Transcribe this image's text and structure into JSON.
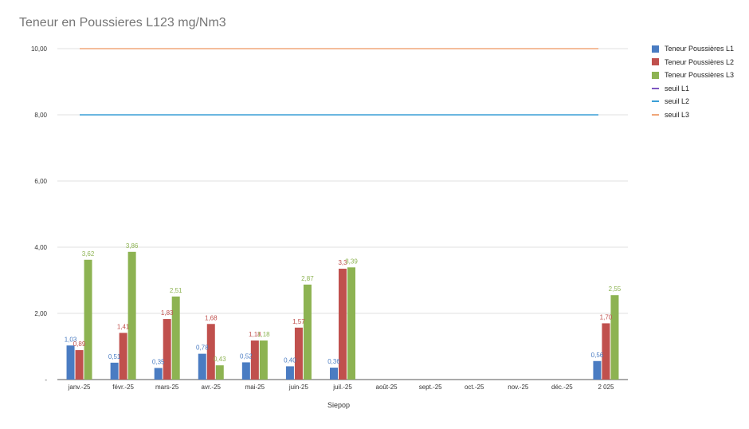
{
  "chart_data": {
    "type": "bar",
    "title": "Teneur en Poussieres L123 mg/Nm3",
    "xlabel": "Siepop",
    "ylabel": "",
    "ylim": [
      0,
      10
    ],
    "y_ticks": [
      "-",
      "2,00",
      "4,00",
      "6,00",
      "8,00",
      "10,00"
    ],
    "categories": [
      "janv.-25",
      "févr.-25",
      "mars-25",
      "avr.-25",
      "mai-25",
      "juin-25",
      "juil.-25",
      "août-25",
      "sept.-25",
      "oct.-25",
      "nov.-25",
      "déc.-25",
      "2 025"
    ],
    "series": [
      {
        "name": "Teneur Poussières L1",
        "color": "#4a7cc2",
        "values": [
          1.03,
          0.51,
          0.35,
          0.78,
          0.52,
          0.4,
          0.36,
          null,
          null,
          null,
          null,
          null,
          0.56
        ],
        "labels": [
          "1,03",
          "0,51",
          "0,35",
          "0,78",
          "0,52",
          "0,40",
          "0,36",
          "",
          "",
          "",
          "",
          "",
          "0,56"
        ]
      },
      {
        "name": "Teneur Poussières L2",
        "color": "#c0504d",
        "values": [
          0.89,
          1.41,
          1.83,
          1.68,
          1.18,
          1.57,
          3.35,
          null,
          null,
          null,
          null,
          null,
          1.7
        ],
        "labels": [
          "0,89",
          "1,41",
          "1,83",
          "1,68",
          "1,18",
          "1,57",
          "3,3",
          "",
          "",
          "",
          "",
          "",
          "1,70"
        ]
      },
      {
        "name": "Teneur Poussières L3",
        "color": "#8db352",
        "values": [
          3.62,
          3.86,
          2.51,
          0.43,
          1.18,
          2.87,
          3.39,
          null,
          null,
          null,
          null,
          null,
          2.55
        ],
        "labels": [
          "3,62",
          "3,86",
          "2,51",
          "0,43",
          "1,18",
          "2,87",
          "3,39",
          "",
          "",
          "",
          "",
          "",
          "2,55"
        ]
      }
    ],
    "thresholds": [
      {
        "name": "seuil L1",
        "color": "#7e57c2",
        "value": null
      },
      {
        "name": "seuil L2",
        "color": "#3a9fd6",
        "value": 8
      },
      {
        "name": "seuil L3",
        "color": "#f0a77a",
        "value": 10
      }
    ],
    "grid": true,
    "legend": "right"
  }
}
